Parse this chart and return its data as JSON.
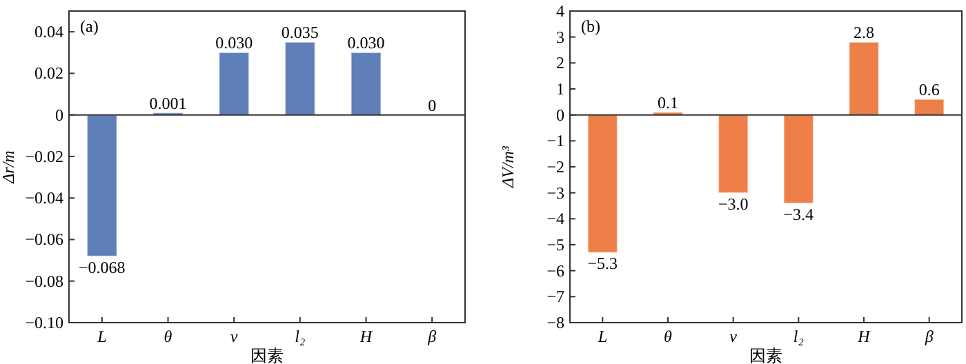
{
  "chart_data": [
    {
      "type": "bar",
      "categories": [
        "L",
        "θ",
        "v",
        "l₂",
        "H",
        "β"
      ],
      "values": [
        -0.068,
        0.001,
        0.03,
        0.035,
        0.03,
        0
      ],
      "value_labels": [
        "−0.068",
        "0.001",
        "0.030",
        "0.035",
        "0.030",
        "0"
      ],
      "color": "#5f7fb8",
      "ylim": [
        -0.1,
        0.05
      ],
      "yticks": [
        {
          "value": -0.1,
          "label": "−0.10"
        },
        {
          "value": -0.08,
          "label": "−0.08"
        },
        {
          "value": -0.06,
          "label": "−0.06"
        },
        {
          "value": -0.04,
          "label": "−0.04"
        },
        {
          "value": -0.02,
          "label": "−0.02"
        },
        0,
        0.02,
        0.04
      ],
      "ylabel": "Δr/m",
      "xlabel": "因素",
      "annotations": [
        "(a)"
      ],
      "ref_lines": [
        {
          "axis": "y",
          "value": 0
        }
      ]
    },
    {
      "type": "bar",
      "categories": [
        "L",
        "θ",
        "v",
        "l₂",
        "H",
        "β"
      ],
      "values": [
        -5.3,
        0.1,
        -3.0,
        -3.4,
        2.8,
        0.6
      ],
      "value_labels": [
        "−5.3",
        "0.1",
        "−3.0",
        "−3.4",
        "2.8",
        "0.6"
      ],
      "color": "#ef7f48",
      "ylim": [
        -8,
        4
      ],
      "yticks": [
        {
          "value": -8,
          "label": "−8"
        },
        {
          "value": -7,
          "label": "−7"
        },
        {
          "value": -6,
          "label": "−6"
        },
        {
          "value": -5,
          "label": "−5"
        },
        {
          "value": -4,
          "label": "−4"
        },
        {
          "value": -3,
          "label": "−3"
        },
        {
          "value": -2,
          "label": "−2"
        },
        {
          "value": -1,
          "label": "−1"
        },
        0,
        1,
        2,
        3,
        4
      ],
      "ylabel": "ΔV/m³",
      "xlabel": "因素",
      "annotations": [
        "(b)"
      ],
      "ref_lines": [
        {
          "axis": "y",
          "value": 0
        }
      ]
    }
  ]
}
